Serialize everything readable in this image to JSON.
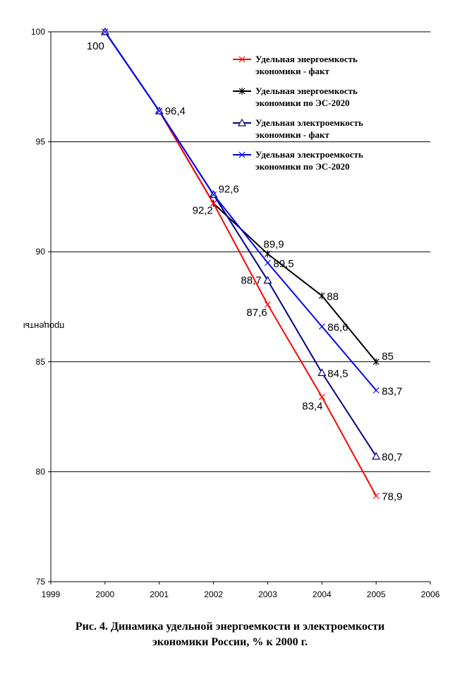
{
  "chart_data": {
    "type": "line",
    "ylabel": "проценты",
    "xlim": [
      1999,
      2006
    ],
    "ylim": [
      75,
      100
    ],
    "x_ticks": [
      "1999",
      "2000",
      "2001",
      "2002",
      "2003",
      "2004",
      "2005",
      "2006"
    ],
    "y_ticks": [
      "75",
      "80",
      "85",
      "90",
      "95",
      "100"
    ],
    "grid": "horizontal",
    "legend_position": "top-right",
    "series": [
      {
        "name": "Удельная энергоемкость экономики - факт",
        "color": "#ff0000",
        "marker": "x",
        "points": [
          {
            "x": 2000,
            "y": 100
          },
          {
            "x": 2001,
            "y": 96.4
          },
          {
            "x": 2002,
            "y": 92.2,
            "label": "92,2"
          },
          {
            "x": 2003,
            "y": 87.6,
            "label": "87,6"
          },
          {
            "x": 2004,
            "y": 83.4,
            "label": "83,4"
          },
          {
            "x": 2005,
            "y": 78.9,
            "label": "78,9"
          }
        ]
      },
      {
        "name": "Удельная энергоемкость экономики по ЭС-2020",
        "color": "#000000",
        "marker": "star",
        "points": [
          {
            "x": 2000,
            "y": 100
          },
          {
            "x": 2001,
            "y": 96.4
          },
          {
            "x": 2002,
            "y": 92.2
          },
          {
            "x": 2003,
            "y": 89.9,
            "label": "89,9"
          },
          {
            "x": 2004,
            "y": 88,
            "label": "88"
          },
          {
            "x": 2005,
            "y": 85,
            "label": "85"
          }
        ]
      },
      {
        "name": "Удельная электроемкость экономики - факт",
        "color": "#000080",
        "marker": "triangle",
        "points": [
          {
            "x": 2000,
            "y": 100,
            "label": "100"
          },
          {
            "x": 2001,
            "y": 96.4,
            "label": "96,4"
          },
          {
            "x": 2002,
            "y": 92.6
          },
          {
            "x": 2003,
            "y": 88.7,
            "label": "88,7"
          },
          {
            "x": 2004,
            "y": 84.5,
            "label": "84,5"
          },
          {
            "x": 2005,
            "y": 80.7,
            "label": "80,7"
          }
        ]
      },
      {
        "name": "Удельная электроемкость экономики по ЭС-2020",
        "color": "#0000ff",
        "marker": "x",
        "points": [
          {
            "x": 2000,
            "y": 100
          },
          {
            "x": 2001,
            "y": 96.4
          },
          {
            "x": 2002,
            "y": 92.6,
            "label": "92,6"
          },
          {
            "x": 2003,
            "y": 89.5,
            "label": "89,5"
          },
          {
            "x": 2004,
            "y": 86.6,
            "label": "86,6"
          },
          {
            "x": 2005,
            "y": 83.7,
            "label": "83,7"
          }
        ]
      }
    ],
    "legend": [
      [
        "Удельная энергоемкость",
        "экономики - факт"
      ],
      [
        "Удельная энергоемкость",
        "экономики по ЭС-2020"
      ],
      [
        "Удельная электроемкость",
        "экономики - факт"
      ],
      [
        "Удельная электроемкость",
        "экономики по ЭС-2020"
      ]
    ]
  },
  "caption": {
    "line1": "Рис. 4. Динамика удельной энергоемкости и электроемкости",
    "line2": "экономики России, % к 2000 г."
  }
}
